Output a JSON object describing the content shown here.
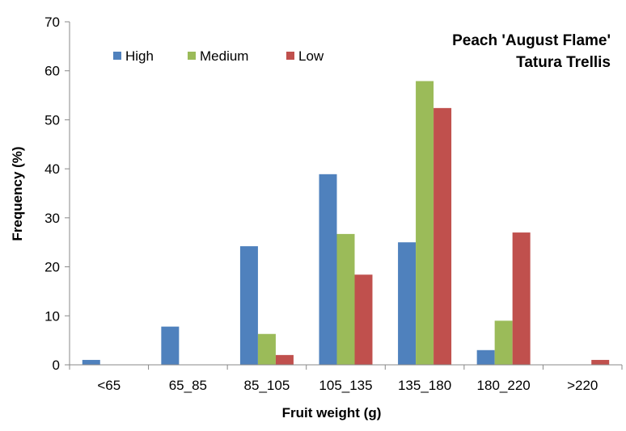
{
  "chart_data": {
    "type": "bar",
    "title": "Peach 'August Flame'",
    "subtitle": "Tatura Trellis",
    "xlabel": "Fruit weight (g)",
    "ylabel": "Frequency (%)",
    "ylim": [
      0,
      70
    ],
    "yticks": [
      0,
      10,
      20,
      30,
      40,
      50,
      60,
      70
    ],
    "grid": false,
    "legend_position": "top-left",
    "categories": [
      "<65",
      "65_85",
      "85_105",
      "105_135",
      "135_180",
      "180_220",
      ">220"
    ],
    "series": [
      {
        "name": "High",
        "color": "#4f81bd",
        "values": [
          1,
          7.8,
          24.2,
          38.9,
          25,
          3,
          0
        ]
      },
      {
        "name": "Medium",
        "color": "#9bbb59",
        "values": [
          0,
          0,
          6.3,
          26.7,
          57.9,
          9,
          0
        ]
      },
      {
        "name": "Low",
        "color": "#c0504d",
        "values": [
          0,
          0,
          2,
          18.4,
          52.4,
          27,
          1
        ]
      }
    ]
  }
}
